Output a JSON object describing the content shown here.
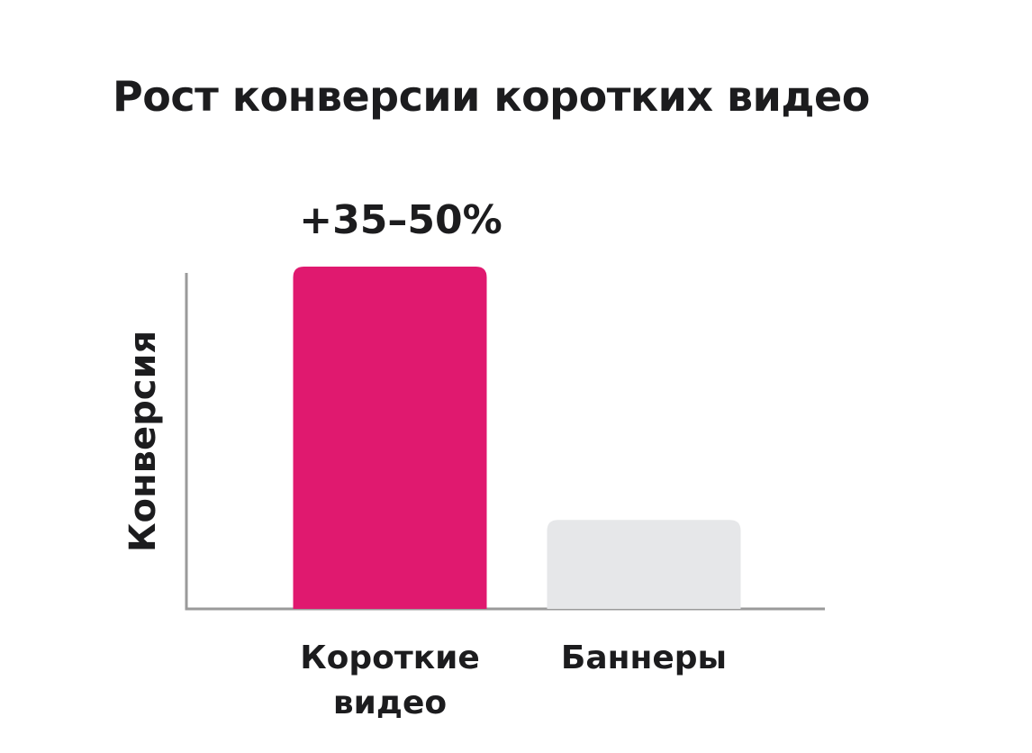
{
  "chart_data": {
    "type": "bar",
    "title": "Рост конверсии коротких видео",
    "ylabel": "Конверсия",
    "xlabel": "",
    "categories": [
      [
        "Короткие",
        "видео"
      ],
      [
        "Баннеры"
      ]
    ],
    "values": [
      100,
      26
    ],
    "data_labels": [
      "+35–50%",
      ""
    ],
    "ylim": [
      0,
      100
    ],
    "grid": false,
    "legend": "none",
    "colors": {
      "bar_primary": "#E0196F",
      "bar_secondary": "#E6E7E9",
      "axis": "#9a9a9a",
      "text": "#1c1c1e"
    }
  }
}
